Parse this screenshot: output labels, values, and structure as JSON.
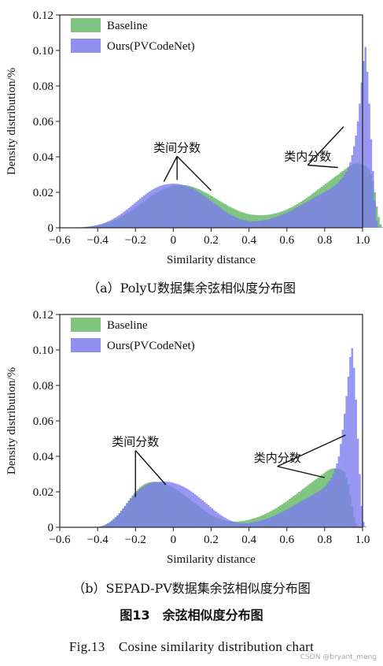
{
  "chart_data": [
    {
      "type": "bar",
      "subtype": "overlapping-histogram",
      "xlabel": "Similarity distance",
      "ylabel": "Density distribution/%",
      "xlim": [
        -0.6,
        1.0
      ],
      "ylim": [
        0,
        0.12
      ],
      "xticks": [
        "−0.6",
        "−0.4",
        "−0.2",
        "0",
        "0.2",
        "0.4",
        "0.6",
        "0.8",
        "1.0"
      ],
      "yticks": [
        "0",
        "0.02",
        "0.04",
        "0.06",
        "0.08",
        "0.10",
        "0.12"
      ],
      "xtick_values": [
        -0.6,
        -0.4,
        -0.2,
        0,
        0.2,
        0.4,
        0.6,
        0.8,
        1.0
      ],
      "ytick_values": [
        0,
        0.02,
        0.04,
        0.06,
        0.08,
        0.1,
        0.12
      ],
      "bin_width": 0.01,
      "x_start": -0.5,
      "legend_position": "top-left",
      "series": [
        {
          "name": "Baseline",
          "color": "#7fc47f",
          "values": [
            0.0002,
            0.0003,
            0.0004,
            0.0005,
            0.0006,
            0.0007,
            0.0009,
            0.001,
            0.0012,
            0.0014,
            0.0016,
            0.0018,
            0.002,
            0.0023,
            0.0026,
            0.0029,
            0.0033,
            0.0037,
            0.0041,
            0.0046,
            0.0051,
            0.0056,
            0.0062,
            0.0068,
            0.0074,
            0.0081,
            0.0088,
            0.0095,
            0.0102,
            0.011,
            0.0118,
            0.0125,
            0.0133,
            0.0141,
            0.0149,
            0.0157,
            0.0165,
            0.0172,
            0.018,
            0.0187,
            0.0194,
            0.02,
            0.0206,
            0.0212,
            0.0217,
            0.0222,
            0.0226,
            0.023,
            0.0233,
            0.0236,
            0.0238,
            0.024,
            0.0241,
            0.0242,
            0.0242,
            0.0241,
            0.024,
            0.0238,
            0.0236,
            0.0233,
            0.023,
            0.0226,
            0.0222,
            0.0217,
            0.0212,
            0.0207,
            0.0201,
            0.0196,
            0.019,
            0.0184,
            0.0178,
            0.0171,
            0.0165,
            0.0158,
            0.0152,
            0.0145,
            0.0139,
            0.0133,
            0.0127,
            0.0121,
            0.0115,
            0.011,
            0.0105,
            0.01,
            0.0095,
            0.0091,
            0.0087,
            0.0084,
            0.0081,
            0.0078,
            0.0076,
            0.0074,
            0.0073,
            0.0072,
            0.0071,
            0.0071,
            0.0071,
            0.0071,
            0.0072,
            0.0073,
            0.0074,
            0.0076,
            0.0078,
            0.008,
            0.0083,
            0.0086,
            0.0089,
            0.0093,
            0.0097,
            0.0101,
            0.0106,
            0.0111,
            0.0116,
            0.0122,
            0.0128,
            0.0134,
            0.014,
            0.0147,
            0.0154,
            0.0161,
            0.0168,
            0.0176,
            0.0184,
            0.0192,
            0.02,
            0.0208,
            0.0216,
            0.0224,
            0.0232,
            0.024,
            0.0248,
            0.0256,
            0.0264,
            0.0272,
            0.028,
            0.0288,
            0.0296,
            0.0304,
            0.0312,
            0.032,
            0.0328,
            0.0336,
            0.0344,
            0.035,
            0.0356,
            0.036,
            0.0362,
            0.0363,
            0.0362,
            0.036,
            0.0355,
            0.035,
            0.034,
            0.033,
            0.03,
            0.026,
            0.02,
            0.012,
            0.006,
            0.002,
            0.0005,
            0
          ]
        },
        {
          "name": "Ours(PVCodeNet)",
          "color": "#7b7bf0",
          "values": [
            0.0001,
            0.0002,
            0.0003,
            0.0004,
            0.0005,
            0.0006,
            0.0008,
            0.001,
            0.0012,
            0.0014,
            0.0017,
            0.002,
            0.0023,
            0.0027,
            0.0031,
            0.0036,
            0.0041,
            0.0046,
            0.0052,
            0.0058,
            0.0065,
            0.0072,
            0.0079,
            0.0087,
            0.0095,
            0.0103,
            0.0112,
            0.012,
            0.0129,
            0.0138,
            0.0147,
            0.0156,
            0.0165,
            0.0174,
            0.0182,
            0.019,
            0.0198,
            0.0205,
            0.0212,
            0.0218,
            0.0224,
            0.0229,
            0.0234,
            0.0238,
            0.0241,
            0.0244,
            0.0246,
            0.0247,
            0.0248,
            0.0249,
            0.0249,
            0.0248,
            0.0247,
            0.0245,
            0.0243,
            0.024,
            0.0237,
            0.0233,
            0.0229,
            0.0224,
            0.0219,
            0.0213,
            0.0207,
            0.0201,
            0.0194,
            0.0187,
            0.018,
            0.0172,
            0.0164,
            0.0156,
            0.0148,
            0.014,
            0.0132,
            0.0124,
            0.0116,
            0.0108,
            0.01,
            0.0093,
            0.0086,
            0.0079,
            0.0073,
            0.0067,
            0.0062,
            0.0057,
            0.0053,
            0.0049,
            0.0046,
            0.0043,
            0.0041,
            0.0039,
            0.0038,
            0.0037,
            0.0037,
            0.0037,
            0.0038,
            0.0039,
            0.004,
            0.0042,
            0.0044,
            0.0046,
            0.0049,
            0.0052,
            0.0055,
            0.0058,
            0.0062,
            0.0066,
            0.007,
            0.0074,
            0.0078,
            0.0083,
            0.0088,
            0.0093,
            0.0098,
            0.0104,
            0.011,
            0.0116,
            0.0122,
            0.0128,
            0.0134,
            0.014,
            0.0146,
            0.0152,
            0.0158,
            0.0164,
            0.017,
            0.0176,
            0.0182,
            0.0188,
            0.0194,
            0.02,
            0.0206,
            0.0212,
            0.0218,
            0.0224,
            0.0232,
            0.024,
            0.025,
            0.026,
            0.0272,
            0.0285,
            0.03,
            0.0318,
            0.034,
            0.037,
            0.041,
            0.046,
            0.052,
            0.06,
            0.07,
            0.082,
            0.094,
            0.102,
            0.088,
            0.07,
            0.05,
            0.032,
            0.015,
            0.004,
            0.0008,
            0.0001,
            0
          ]
        }
      ],
      "annotations": [
        {
          "text": "类间分数",
          "x": 0.02,
          "y": 0.043,
          "targets": [
            [
              -0.05,
              0.026
            ],
            [
              0.02,
              0.027
            ],
            [
              0.2,
              0.021
            ]
          ]
        },
        {
          "text": "类内分数",
          "x": 0.71,
          "y": 0.038,
          "targets": [
            [
              0.87,
              0.034
            ],
            [
              0.9,
              0.057
            ]
          ]
        }
      ]
    },
    {
      "type": "bar",
      "subtype": "overlapping-histogram",
      "xlabel": "Similarity distance",
      "ylabel": "Density distribution/%",
      "xlim": [
        -0.6,
        1.0
      ],
      "ylim": [
        0,
        0.12
      ],
      "xticks": [
        "−0.6",
        "−0.4",
        "−0.2",
        "0",
        "0.2",
        "0.4",
        "0.6",
        "0.8",
        "1.0"
      ],
      "yticks": [
        "0",
        "0.02",
        "0.04",
        "0.06",
        "0.08",
        "0.10",
        "0.12"
      ],
      "xtick_values": [
        -0.6,
        -0.4,
        -0.2,
        0,
        0.2,
        0.4,
        0.6,
        0.8,
        1.0
      ],
      "ytick_values": [
        0,
        0.02,
        0.04,
        0.06,
        0.08,
        0.1,
        0.12
      ],
      "bin_width": 0.01,
      "x_start": -0.5,
      "legend_position": "top-left",
      "series": [
        {
          "name": "Baseline",
          "color": "#7fc47f",
          "values": [
            0,
            0,
            0,
            0,
            0,
            0,
            0,
            0,
            0,
            0,
            0.0003,
            0.0005,
            0.0008,
            0.0012,
            0.0017,
            0.0023,
            0.003,
            0.0038,
            0.0047,
            0.0057,
            0.0068,
            0.008,
            0.0093,
            0.0107,
            0.0121,
            0.0136,
            0.0151,
            0.0166,
            0.018,
            0.0193,
            0.0205,
            0.0216,
            0.0226,
            0.0234,
            0.0241,
            0.0247,
            0.0251,
            0.0254,
            0.0256,
            0.0257,
            0.0257,
            0.0256,
            0.0254,
            0.0251,
            0.0248,
            0.0244,
            0.024,
            0.0235,
            0.023,
            0.0224,
            0.0218,
            0.0212,
            0.0205,
            0.0198,
            0.0191,
            0.0184,
            0.0176,
            0.0168,
            0.016,
            0.0152,
            0.0143,
            0.0135,
            0.0127,
            0.0119,
            0.0111,
            0.0103,
            0.0095,
            0.0088,
            0.0081,
            0.0074,
            0.0068,
            0.0062,
            0.0057,
            0.0052,
            0.0048,
            0.0044,
            0.0041,
            0.0038,
            0.0036,
            0.0034,
            0.0033,
            0.0032,
            0.0032,
            0.0032,
            0.0033,
            0.0034,
            0.0035,
            0.0037,
            0.0039,
            0.0041,
            0.0044,
            0.0047,
            0.005,
            0.0053,
            0.0057,
            0.0061,
            0.0065,
            0.007,
            0.0075,
            0.008,
            0.0085,
            0.0091,
            0.0097,
            0.0103,
            0.0109,
            0.0116,
            0.0123,
            0.013,
            0.0137,
            0.0144,
            0.0152,
            0.016,
            0.0168,
            0.0176,
            0.0184,
            0.0192,
            0.02,
            0.0208,
            0.0216,
            0.0224,
            0.0232,
            0.024,
            0.0248,
            0.0256,
            0.0264,
            0.0272,
            0.028,
            0.0288,
            0.0296,
            0.0304,
            0.0312,
            0.032,
            0.0326,
            0.033,
            0.0332,
            0.0333,
            0.0332,
            0.033,
            0.0326,
            0.032,
            0.031,
            0.028,
            0.024,
            0.018,
            0.012,
            0.006,
            0.002,
            0.0005,
            0,
            0,
            0,
            0,
            0,
            0,
            0
          ]
        },
        {
          "name": "Ours(PVCodeNet)",
          "color": "#7b7bf0",
          "values": [
            0,
            0,
            0,
            0,
            0,
            0,
            0,
            0,
            0,
            0,
            0.0002,
            0.0004,
            0.0007,
            0.0011,
            0.0016,
            0.0022,
            0.0029,
            0.0037,
            0.0046,
            0.0056,
            0.0067,
            0.0079,
            0.0092,
            0.0106,
            0.012,
            0.0134,
            0.0148,
            0.0162,
            0.0175,
            0.0187,
            0.0198,
            0.0208,
            0.0217,
            0.0225,
            0.0232,
            0.0238,
            0.0243,
            0.0247,
            0.025,
            0.0252,
            0.0254,
            0.0255,
            0.0256,
            0.0257,
            0.0258,
            0.0258,
            0.0257,
            0.0256,
            0.0254,
            0.0252,
            0.0249,
            0.0246,
            0.0242,
            0.0238,
            0.0233,
            0.0228,
            0.0222,
            0.0216,
            0.0209,
            0.0202,
            0.0194,
            0.0186,
            0.0178,
            0.0169,
            0.016,
            0.0151,
            0.0142,
            0.0133,
            0.0124,
            0.0115,
            0.0106,
            0.0097,
            0.0089,
            0.0081,
            0.0073,
            0.0066,
            0.0059,
            0.0053,
            0.0047,
            0.0042,
            0.0037,
            0.0033,
            0.003,
            0.0027,
            0.0025,
            0.0024,
            0.0023,
            0.0023,
            0.0023,
            0.0024,
            0.0025,
            0.0027,
            0.0029,
            0.0031,
            0.0033,
            0.0036,
            0.0039,
            0.0042,
            0.0045,
            0.0049,
            0.0053,
            0.0057,
            0.0061,
            0.0066,
            0.0071,
            0.0076,
            0.0081,
            0.0086,
            0.0092,
            0.0098,
            0.0104,
            0.011,
            0.0116,
            0.0122,
            0.0128,
            0.0134,
            0.014,
            0.0146,
            0.0152,
            0.0158,
            0.0164,
            0.017,
            0.0176,
            0.0182,
            0.0188,
            0.0194,
            0.02,
            0.0207,
            0.0215,
            0.0224,
            0.0235,
            0.0248,
            0.0263,
            0.028,
            0.0302,
            0.0328,
            0.036,
            0.04,
            0.047,
            0.055,
            0.064,
            0.074,
            0.085,
            0.096,
            0.101,
            0.09,
            0.072,
            0.05,
            0.03,
            0.012,
            0.003,
            0.0005,
            0,
            0
          ]
        }
      ],
      "annotations": [
        {
          "text": "类间分数",
          "x": -0.2,
          "y": 0.046,
          "targets": [
            [
              -0.2,
              0.017
            ],
            [
              -0.04,
              0.024
            ]
          ]
        },
        {
          "text": "类内分数",
          "x": 0.55,
          "y": 0.037,
          "targets": [
            [
              0.8,
              0.028
            ],
            [
              0.91,
              0.052
            ]
          ]
        }
      ]
    }
  ],
  "captions": {
    "a": "（a）PolyU数据集余弦相似度分布图",
    "b": "（b）SEPAD-PV数据集余弦相似度分布图",
    "figure_cn": "图13　余弦相似度分布图",
    "figure_en": "Fig.13　Cosine similarity distribution chart"
  },
  "watermark": "CSDN @bryant_meng"
}
